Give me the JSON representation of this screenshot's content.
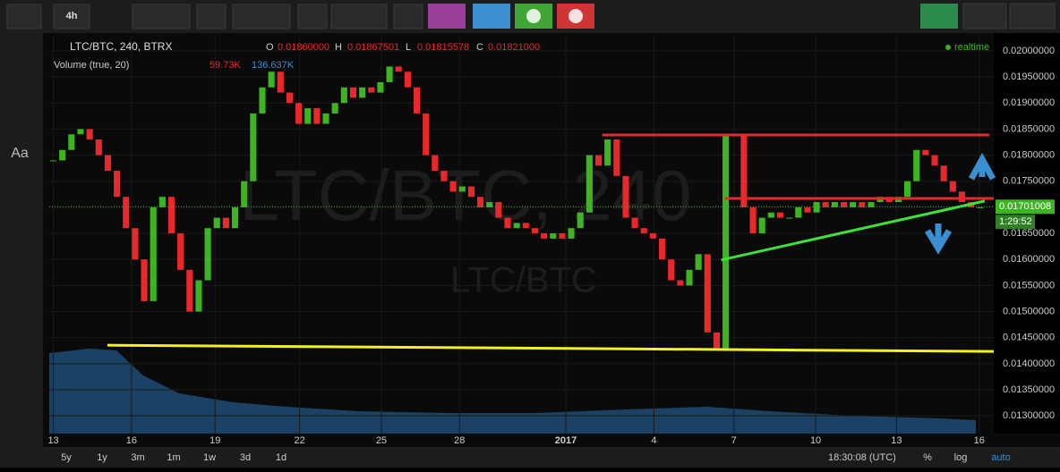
{
  "toolbar": {
    "interval": "4h",
    "left_text_tool": "Aa"
  },
  "header": {
    "symbol": "LTC/BTC, 240, BTRX",
    "o_label": "O",
    "o": "0.01860000",
    "h_label": "H",
    "h": "0.01867501",
    "l_label": "L",
    "l": "0.01815578",
    "c_label": "C",
    "c": "0.01821000",
    "volume": "Volume (true, 20)",
    "vol1": "59.73K",
    "vol2": "136.637K",
    "status": "realtime"
  },
  "watermark": {
    "big": "LTC/BTC, 240",
    "small": "LTC/BTC"
  },
  "chart": {
    "type": "candlestick",
    "up_color": "#3cb521",
    "down_color": "#e8282b",
    "x": [
      0,
      1,
      2,
      3,
      4,
      5,
      6,
      7,
      8,
      9,
      10,
      11,
      12,
      13,
      14,
      15,
      16,
      17,
      18,
      19,
      20,
      21,
      22,
      23,
      24,
      25,
      26,
      27,
      28,
      29,
      30,
      31,
      32,
      33,
      34,
      35,
      36,
      37,
      38,
      39,
      40,
      41,
      42,
      43,
      44,
      45,
      46,
      47,
      48,
      49,
      50,
      51,
      52,
      53,
      54,
      55,
      56,
      57,
      58,
      59,
      60,
      61,
      62,
      63,
      64,
      65,
      66,
      67,
      68,
      69,
      70,
      71,
      72,
      73,
      74,
      75,
      76,
      77,
      78,
      79,
      80,
      81,
      82,
      83,
      84,
      85,
      86,
      87,
      88,
      89,
      90,
      91,
      92,
      93,
      94,
      95,
      96,
      97,
      98,
      99,
      100,
      101,
      102
    ],
    "closes": [
      0.0179,
      0.0181,
      0.0184,
      0.0185,
      0.0183,
      0.018,
      0.0177,
      0.0172,
      0.0166,
      0.016,
      0.0152,
      0.017,
      0.0172,
      0.0165,
      0.0158,
      0.015,
      0.0156,
      0.0166,
      0.0168,
      0.0166,
      0.017,
      0.0175,
      0.0188,
      0.0193,
      0.0196,
      0.0192,
      0.019,
      0.0186,
      0.0189,
      0.0186,
      0.0188,
      0.019,
      0.0193,
      0.0191,
      0.0193,
      0.0192,
      0.0194,
      0.0197,
      0.0196,
      0.0193,
      0.0188,
      0.018,
      0.0177,
      0.0175,
      0.0173,
      0.0174,
      0.0172,
      0.017,
      0.0171,
      0.0168,
      0.0166,
      0.0167,
      0.0166,
      0.0165,
      0.0164,
      0.0165,
      0.0164,
      0.0166,
      0.0169,
      0.018,
      0.0178,
      0.0183,
      0.0176,
      0.0168,
      0.0166,
      0.0165,
      0.0164,
      0.016,
      0.0156,
      0.0155,
      0.0158,
      0.0161,
      0.0146,
      0.0143,
      0.0184,
      0.0184,
      0.017,
      0.0165,
      0.0168,
      0.0169,
      0.0168,
      0.0168,
      0.017,
      0.0169,
      0.0171,
      0.017,
      0.0171,
      0.017,
      0.0171,
      0.017,
      0.0171,
      0.0172,
      0.0171,
      0.0172,
      0.0175,
      0.0181,
      0.018,
      0.0178,
      0.0175,
      0.0173,
      0.0171,
      0.017,
      0.017
    ],
    "xlim": [
      -0.45,
      103.5
    ],
    "ylim": [
      0.01266,
      0.02029
    ],
    "xticks": [
      {
        "value": 0,
        "label": "13"
      },
      {
        "value": 8.6,
        "label": "16"
      },
      {
        "value": 17.8,
        "label": "19"
      },
      {
        "value": 27.1,
        "label": "22"
      },
      {
        "value": 36.1,
        "label": "25"
      },
      {
        "value": 44.7,
        "label": "28"
      },
      {
        "value": 56.4,
        "label": "2017"
      },
      {
        "value": 66.1,
        "label": "4"
      },
      {
        "value": 74.9,
        "label": "7"
      },
      {
        "value": 83.9,
        "label": "10"
      },
      {
        "value": 92.8,
        "label": "13"
      },
      {
        "value": 101.9,
        "label": "16"
      }
    ],
    "yticks": [
      {
        "value": 0.013,
        "label": "0.01300000"
      },
      {
        "value": 0.0135,
        "label": "0.01350000"
      },
      {
        "value": 0.014,
        "label": "0.01400000"
      },
      {
        "value": 0.0145,
        "label": "0.01450000"
      },
      {
        "value": 0.015,
        "label": "0.01500000"
      },
      {
        "value": 0.0155,
        "label": "0.01550000"
      },
      {
        "value": 0.016,
        "label": "0.01600000"
      },
      {
        "value": 0.0165,
        "label": "0.01650000"
      },
      {
        "value": 0.017,
        "label": "0.01700000"
      },
      {
        "value": 0.0175,
        "label": "0.01750000"
      },
      {
        "value": 0.018,
        "label": "0.01800000"
      },
      {
        "value": 0.0185,
        "label": "0.01850000"
      },
      {
        "value": 0.019,
        "label": "0.01900000"
      },
      {
        "value": 0.0195,
        "label": "0.01950000"
      },
      {
        "value": 0.02,
        "label": "0.02000000"
      }
    ],
    "last_price": {
      "value": 0.01701008,
      "label": "0.01701008",
      "countdown": "1:29:52"
    },
    "drawings": [
      {
        "color": "#e8282b",
        "x": [
          60.4,
          103
        ],
        "y": [
          0.018387,
          0.018387
        ]
      },
      {
        "color": "#e8282b",
        "x": [
          73.9,
          103.5
        ],
        "y": [
          0.01717,
          0.01717
        ]
      },
      {
        "color": "#3ee03a",
        "x": [
          73.5,
          102.5
        ],
        "y": [
          0.01599,
          0.01712
        ]
      },
      {
        "color": "#f1f124",
        "x": [
          5.95,
          103.5
        ],
        "y": [
          0.014355,
          0.014235
        ]
      }
    ]
  },
  "bottom": {
    "ranges": [
      "5y",
      "1y",
      "3m",
      "1m",
      "1w",
      "3d",
      "1d"
    ],
    "time": "18:30:08 (UTC)",
    "pct": "%",
    "log": "log",
    "auto": "auto"
  }
}
